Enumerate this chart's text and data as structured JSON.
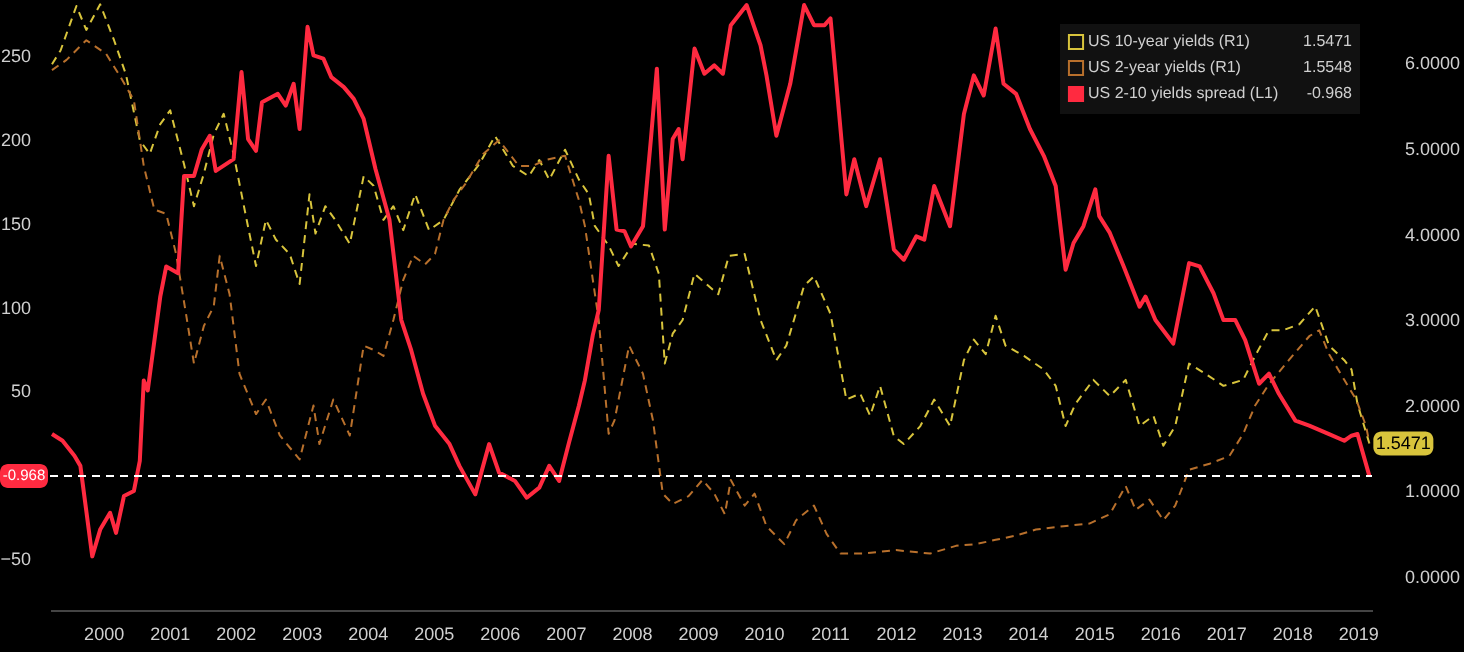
{
  "chart_data": {
    "type": "line",
    "xlim": [
      1999.68,
      2019.7
    ],
    "xticks": [
      {
        "value": 2000.5,
        "label": "2000"
      },
      {
        "value": 2001.5,
        "label": "2001"
      },
      {
        "value": 2002.5,
        "label": "2002"
      },
      {
        "value": 2003.5,
        "label": "2003"
      },
      {
        "value": 2004.5,
        "label": "2004"
      },
      {
        "value": 2005.5,
        "label": "2005"
      },
      {
        "value": 2006.5,
        "label": "2006"
      },
      {
        "value": 2007.5,
        "label": "2007"
      },
      {
        "value": 2008.5,
        "label": "2008"
      },
      {
        "value": 2009.5,
        "label": "2009"
      },
      {
        "value": 2010.5,
        "label": "2010"
      },
      {
        "value": 2011.5,
        "label": "2011"
      },
      {
        "value": 2012.5,
        "label": "2012"
      },
      {
        "value": 2013.5,
        "label": "2013"
      },
      {
        "value": 2014.5,
        "label": "2014"
      },
      {
        "value": 2015.5,
        "label": "2015"
      },
      {
        "value": 2016.5,
        "label": "2016"
      },
      {
        "value": 2017.5,
        "label": "2017"
      },
      {
        "value": 2018.5,
        "label": "2018"
      },
      {
        "value": 2019.5,
        "label": "2019"
      }
    ],
    "ylim": [
      -81,
      283
    ],
    "yticks": [
      -50,
      50,
      100,
      150,
      200,
      250
    ],
    "y2lim": [
      -0.4,
      6.73
    ],
    "y2ticks": [
      {
        "value": 0,
        "label": "0.0000"
      },
      {
        "value": 1,
        "label": "1.0000"
      },
      {
        "value": 2,
        "label": "2.0000"
      },
      {
        "value": 3,
        "label": "3.0000"
      },
      {
        "value": 4,
        "label": "4.0000"
      },
      {
        "value": 5,
        "label": "5.0000"
      },
      {
        "value": 6,
        "label": "6.0000"
      }
    ],
    "legend": "top right",
    "series": [
      {
        "name": "US 10-year yields (R1)",
        "color": "#d8c43c",
        "axis": "y2",
        "line_style": "dashed",
        "x": [
          1999.71,
          1999.84,
          2000.08,
          2000.23,
          2000.44,
          2000.65,
          2000.83,
          2001.04,
          2001.19,
          2001.35,
          2001.5,
          2001.71,
          2001.86,
          2002.01,
          2002.16,
          2002.31,
          2002.46,
          2002.64,
          2002.8,
          2002.95,
          2003.1,
          2003.31,
          2003.46,
          2003.61,
          2003.7,
          2003.85,
          2004.0,
          2004.22,
          2004.43,
          2004.58,
          2004.73,
          2004.88,
          2005.03,
          2005.21,
          2005.42,
          2005.64,
          2005.88,
          2006.18,
          2006.42,
          2006.69,
          2006.93,
          2007.09,
          2007.24,
          2007.48,
          2007.69,
          2007.84,
          2007.93,
          2008.14,
          2008.29,
          2008.51,
          2008.75,
          2008.9,
          2008.99,
          2009.11,
          2009.26,
          2009.44,
          2009.65,
          2009.8,
          2009.96,
          2010.2,
          2010.44,
          2010.68,
          2010.83,
          2011.1,
          2011.25,
          2011.5,
          2011.74,
          2011.95,
          2012.1,
          2012.25,
          2012.46,
          2012.61,
          2012.86,
          2013.07,
          2013.31,
          2013.52,
          2013.67,
          2013.85,
          2014.0,
          2014.15,
          2014.43,
          2014.73,
          2014.91,
          2015.06,
          2015.21,
          2015.48,
          2015.73,
          2015.97,
          2016.18,
          2016.39,
          2016.54,
          2016.72,
          2016.93,
          2017.18,
          2017.45,
          2017.75,
          2017.93,
          2018.14,
          2018.35,
          2018.6,
          2018.84,
          2019.05,
          2019.28,
          2019.39,
          2019.48,
          2019.66
        ],
        "values": [
          5.98,
          6.14,
          6.66,
          6.38,
          6.68,
          6.26,
          5.86,
          5.09,
          4.93,
          5.28,
          5.44,
          4.81,
          4.32,
          4.7,
          5.16,
          5.4,
          4.93,
          4.23,
          3.62,
          4.16,
          3.93,
          3.76,
          3.41,
          4.46,
          4.0,
          4.32,
          4.16,
          3.88,
          4.67,
          4.56,
          4.16,
          4.32,
          4.04,
          4.46,
          4.04,
          4.16,
          4.51,
          4.81,
          5.14,
          4.79,
          4.67,
          4.86,
          4.63,
          4.98,
          4.63,
          4.46,
          4.09,
          3.86,
          3.62,
          3.88,
          3.86,
          3.53,
          2.48,
          2.83,
          2.99,
          3.53,
          3.39,
          3.29,
          3.74,
          3.76,
          2.99,
          2.52,
          2.69,
          3.39,
          3.5,
          3.06,
          2.06,
          2.13,
          1.87,
          2.22,
          1.63,
          1.54,
          1.75,
          2.06,
          1.75,
          2.52,
          2.76,
          2.59,
          3.04,
          2.69,
          2.57,
          2.41,
          2.22,
          1.75,
          2.01,
          2.29,
          2.1,
          2.29,
          1.75,
          1.87,
          1.52,
          1.75,
          2.48,
          2.36,
          2.22,
          2.29,
          2.57,
          2.87,
          2.87,
          2.94,
          3.15,
          2.69,
          2.52,
          2.41,
          2.01,
          1.5471
        ]
      },
      {
        "name": "US 2-year yields (R1)",
        "color": "#b8702c",
        "axis": "y2",
        "line_style": "dashed",
        "x": [
          1999.71,
          1999.93,
          2000.23,
          2000.53,
          2000.74,
          2000.95,
          2001.1,
          2001.26,
          2001.44,
          2001.59,
          2001.74,
          2001.86,
          2002.01,
          2002.16,
          2002.25,
          2002.4,
          2002.55,
          2002.8,
          2002.95,
          2003.16,
          2003.46,
          2003.67,
          2003.76,
          2003.97,
          2004.22,
          2004.43,
          2004.58,
          2004.73,
          2004.88,
          2005.03,
          2005.18,
          2005.36,
          2005.51,
          2005.64,
          2005.79,
          2005.97,
          2006.24,
          2006.48,
          2006.78,
          2006.99,
          2007.18,
          2007.48,
          2007.69,
          2007.78,
          2007.99,
          2008.14,
          2008.23,
          2008.45,
          2008.66,
          2008.81,
          2008.96,
          2009.11,
          2009.35,
          2009.56,
          2009.74,
          2009.9,
          2009.99,
          2010.2,
          2010.35,
          2010.53,
          2010.8,
          2010.98,
          2011.25,
          2011.44,
          2011.65,
          2012.01,
          2012.49,
          2013.01,
          2013.4,
          2013.7,
          2014.0,
          2014.31,
          2014.61,
          2015.03,
          2015.42,
          2015.73,
          2015.97,
          2016.12,
          2016.33,
          2016.54,
          2016.72,
          2016.93,
          2017.24,
          2017.54,
          2017.75,
          2017.93,
          2018.14,
          2018.44,
          2018.75,
          2018.9,
          2019.05,
          2019.28,
          2019.46,
          2019.61,
          2019.66
        ],
        "values": [
          5.91,
          6.03,
          6.26,
          6.1,
          5.84,
          5.56,
          4.79,
          4.28,
          4.23,
          3.76,
          3.06,
          2.48,
          2.92,
          3.15,
          3.74,
          3.29,
          2.36,
          1.89,
          2.06,
          1.64,
          1.36,
          1.99,
          1.54,
          2.06,
          1.64,
          2.69,
          2.64,
          2.57,
          2.99,
          3.46,
          3.74,
          3.64,
          3.76,
          4.16,
          4.39,
          4.58,
          4.93,
          5.09,
          4.79,
          4.79,
          4.86,
          4.91,
          4.39,
          4.09,
          2.99,
          1.66,
          1.82,
          2.69,
          2.36,
          1.82,
          0.96,
          0.84,
          0.93,
          1.12,
          0.96,
          0.72,
          1.12,
          0.82,
          0.96,
          0.58,
          0.37,
          0.65,
          0.82,
          0.49,
          0.26,
          0.26,
          0.3,
          0.26,
          0.35,
          0.37,
          0.42,
          0.47,
          0.54,
          0.58,
          0.61,
          0.72,
          1.05,
          0.77,
          0.89,
          0.65,
          0.82,
          1.24,
          1.31,
          1.4,
          1.66,
          1.99,
          2.24,
          2.52,
          2.8,
          2.87,
          2.59,
          2.29,
          2.06,
          1.75,
          1.5548
        ]
      },
      {
        "name": "US 2-10 yields spread (L1)",
        "color": "#ff2a40",
        "line_style": "solid",
        "x": [
          1999.71,
          1999.87,
          2000.05,
          2000.14,
          2000.32,
          2000.44,
          2000.59,
          2000.68,
          2000.8,
          2000.95,
          2001.04,
          2001.1,
          2001.16,
          2001.35,
          2001.44,
          2001.62,
          2001.71,
          2001.86,
          2001.98,
          2002.1,
          2002.19,
          2002.46,
          2002.58,
          2002.68,
          2002.8,
          2002.89,
          2003.13,
          2003.25,
          2003.37,
          2003.46,
          2003.58,
          2003.67,
          2003.82,
          2003.94,
          2004.13,
          2004.28,
          2004.43,
          2004.61,
          2004.82,
          2005.0,
          2005.15,
          2005.33,
          2005.51,
          2005.73,
          2005.88,
          2006.12,
          2006.33,
          2006.48,
          2006.72,
          2006.9,
          2007.09,
          2007.24,
          2007.39,
          2007.54,
          2007.69,
          2007.78,
          2007.9,
          2007.99,
          2008.14,
          2008.26,
          2008.38,
          2008.48,
          2008.66,
          2008.78,
          2008.87,
          2008.99,
          2009.11,
          2009.2,
          2009.26,
          2009.44,
          2009.59,
          2009.74,
          2009.87,
          2009.99,
          2010.23,
          2010.44,
          2010.53,
          2010.68,
          2010.89,
          2011.1,
          2011.25,
          2011.41,
          2011.5,
          2011.74,
          2011.86,
          2012.04,
          2012.25,
          2012.46,
          2012.61,
          2012.8,
          2012.92,
          2013.07,
          2013.31,
          2013.52,
          2013.67,
          2013.82,
          2014.0,
          2014.12,
          2014.31,
          2014.52,
          2014.73,
          2014.91,
          2015.06,
          2015.18,
          2015.33,
          2015.51,
          2015.57,
          2015.73,
          2015.94,
          2016.18,
          2016.27,
          2016.42,
          2016.69,
          2016.93,
          2017.09,
          2017.3,
          2017.45,
          2017.63,
          2017.78,
          2017.99,
          2018.14,
          2018.29,
          2018.54,
          2018.75,
          2019.05,
          2019.28,
          2019.39,
          2019.48,
          2019.66
        ],
        "values": [
          24,
          20,
          11,
          5,
          -49,
          -33,
          -23,
          -35,
          -13,
          -10,
          8,
          56,
          50,
          106,
          124,
          120,
          178,
          178,
          194,
          202,
          181,
          188,
          240,
          200,
          193,
          222,
          227,
          220,
          233,
          206,
          267,
          250,
          248,
          237,
          231,
          224,
          212,
          182,
          152,
          92,
          74,
          48,
          29,
          18,
          5,
          -12,
          18,
          1,
          -4,
          -14,
          -8,
          5,
          -4,
          19,
          41,
          56,
          83,
          98,
          190,
          146,
          145,
          136,
          148,
          200,
          242,
          146,
          200,
          206,
          188,
          254,
          239,
          244,
          239,
          268,
          280,
          256,
          238,
          202,
          233,
          280,
          268,
          268,
          272,
          167,
          188,
          160,
          188,
          134,
          128,
          142,
          140,
          172,
          148,
          215,
          238,
          226,
          266,
          233,
          227,
          206,
          190,
          172,
          122,
          138,
          148,
          170,
          154,
          144,
          124,
          100,
          106,
          92,
          78,
          126,
          124,
          108,
          92,
          92,
          80,
          54,
          60,
          48,
          32,
          29,
          24,
          20,
          23,
          24,
          -0.968
        ]
      }
    ],
    "ref_lines": [
      {
        "axis": "y",
        "value": -0.968,
        "label": "-0.968",
        "color": "#ffffff",
        "line_style": "dashed"
      }
    ],
    "annotations": [
      "1.5471",
      "1.5548",
      "-0.968",
      {
        "text": "1.5471",
        "x": 2019.66,
        "y": 1.5471
      }
    ]
  }
}
